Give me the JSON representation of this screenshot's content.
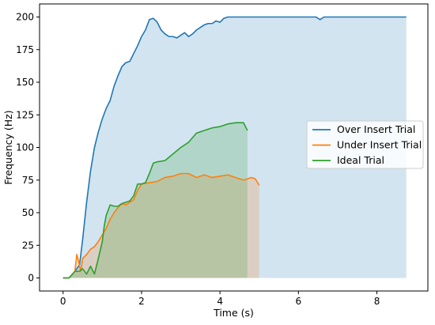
{
  "chart_data": {
    "type": "line",
    "title": "",
    "xlabel": "Time (s)",
    "ylabel": "Frequency (Hz)",
    "xlim": [
      -0.6,
      9.3
    ],
    "ylim": [
      -10,
      210
    ],
    "xticks": [
      0,
      2,
      4,
      6,
      8
    ],
    "yticks": [
      0,
      25,
      50,
      75,
      100,
      125,
      150,
      175,
      200
    ],
    "grid": false,
    "legend_position": "center-right",
    "series": [
      {
        "name": "Over Insert Trial",
        "color": "#1f77b4",
        "fill": true,
        "x": [
          0.0,
          0.15,
          0.3,
          0.42,
          0.5,
          0.6,
          0.7,
          0.8,
          0.9,
          1.0,
          1.1,
          1.2,
          1.3,
          1.4,
          1.5,
          1.6,
          1.7,
          1.8,
          1.9,
          2.0,
          2.1,
          2.2,
          2.3,
          2.4,
          2.5,
          2.6,
          2.7,
          2.8,
          2.9,
          3.0,
          3.1,
          3.2,
          3.3,
          3.4,
          3.5,
          3.6,
          3.7,
          3.8,
          3.9,
          4.0,
          4.1,
          4.2,
          4.5,
          5.0,
          5.5,
          6.0,
          6.45,
          6.55,
          6.65,
          7.0,
          7.5,
          8.0,
          8.5,
          8.75
        ],
        "y": [
          0,
          0,
          5,
          10,
          30,
          58,
          82,
          100,
          112,
          122,
          130,
          136,
          147,
          155,
          162,
          165,
          166,
          172,
          178,
          185,
          190,
          198,
          199,
          196,
          190,
          187,
          185,
          185,
          184,
          186,
          188,
          185,
          187,
          190,
          192,
          194,
          195,
          195,
          197,
          196,
          199,
          200,
          200,
          200,
          200,
          200,
          200,
          198,
          200,
          200,
          200,
          200,
          200,
          200
        ]
      },
      {
        "name": "Under Insert Trial",
        "color": "#ff7f0e",
        "fill": true,
        "x": [
          0.0,
          0.15,
          0.3,
          0.35,
          0.4,
          0.45,
          0.5,
          0.6,
          0.7,
          0.8,
          0.9,
          1.0,
          1.1,
          1.2,
          1.3,
          1.4,
          1.5,
          1.6,
          1.7,
          1.8,
          1.9,
          2.0,
          2.2,
          2.4,
          2.6,
          2.8,
          3.0,
          3.2,
          3.4,
          3.6,
          3.8,
          4.0,
          4.2,
          4.4,
          4.6,
          4.8,
          4.9,
          5.0
        ],
        "y": [
          0,
          0,
          5,
          18,
          12,
          5,
          15,
          18,
          22,
          24,
          28,
          33,
          38,
          45,
          50,
          54,
          57,
          56,
          58,
          60,
          67,
          72,
          73,
          74,
          77,
          78,
          80,
          80,
          77,
          79,
          77,
          78,
          79,
          77,
          75,
          77,
          76,
          71
        ]
      },
      {
        "name": "Ideal Trial",
        "color": "#2ca02c",
        "fill": true,
        "x": [
          0.0,
          0.15,
          0.3,
          0.4,
          0.5,
          0.6,
          0.7,
          0.8,
          0.9,
          1.0,
          1.05,
          1.1,
          1.2,
          1.3,
          1.4,
          1.5,
          1.6,
          1.7,
          1.8,
          1.9,
          2.0,
          2.1,
          2.2,
          2.3,
          2.4,
          2.6,
          2.8,
          3.0,
          3.2,
          3.4,
          3.6,
          3.8,
          4.0,
          4.2,
          4.4,
          4.6,
          4.7
        ],
        "y": [
          0,
          0,
          5,
          5,
          7,
          3,
          9,
          3,
          15,
          28,
          40,
          48,
          56,
          55,
          55,
          57,
          58,
          59,
          63,
          72,
          72,
          73,
          80,
          88,
          89,
          90,
          95,
          100,
          104,
          111,
          113,
          115,
          116,
          118,
          119,
          119,
          113
        ]
      }
    ]
  }
}
